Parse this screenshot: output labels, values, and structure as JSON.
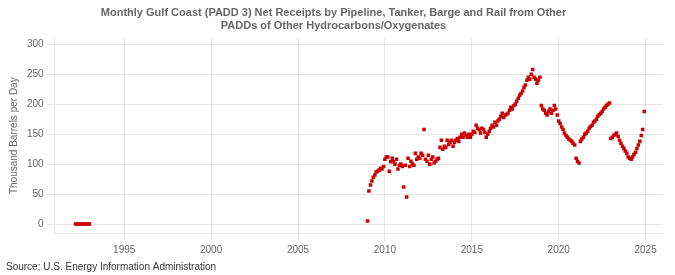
{
  "chart_data": {
    "type": "scatter",
    "title": "Monthly Gulf Coast (PADD 3) Net Receipts by Pipeline, Tanker, Barge and Rail from Other\nPADDs of Other Hydrocarbons/Oxygenates",
    "ylabel": "Thousand Barrels per Day",
    "annotations": [
      "Source: U.S. Energy Information Administration"
    ],
    "color": "#cc0000",
    "marker": "square",
    "grid": true,
    "xlim": [
      1991.0,
      2026.0
    ],
    "ylim": [
      -15,
      310
    ],
    "xticks": [
      1995,
      2000,
      2005,
      2010,
      2015,
      2020,
      2025
    ],
    "yticks": [
      0,
      50,
      100,
      150,
      200,
      250,
      300
    ],
    "x": [
      1992.2,
      1992.3,
      1992.4,
      1992.5,
      1992.6,
      1992.7,
      1992.8,
      1992.9,
      1993.0,
      2009.0,
      2009.08,
      2009.17,
      2009.25,
      2009.33,
      2009.42,
      2009.5,
      2009.58,
      2009.67,
      2009.75,
      2009.83,
      2009.92,
      2010.0,
      2010.08,
      2010.17,
      2010.25,
      2010.33,
      2010.42,
      2010.5,
      2010.58,
      2010.67,
      2010.75,
      2010.83,
      2010.92,
      2011.0,
      2011.08,
      2011.17,
      2011.25,
      2011.33,
      2011.42,
      2011.5,
      2011.58,
      2011.67,
      2011.75,
      2011.83,
      2011.92,
      2012.0,
      2012.08,
      2012.17,
      2012.25,
      2012.33,
      2012.42,
      2012.5,
      2012.58,
      2012.67,
      2012.75,
      2012.83,
      2012.92,
      2013.0,
      2013.08,
      2013.17,
      2013.25,
      2013.33,
      2013.42,
      2013.5,
      2013.58,
      2013.67,
      2013.75,
      2013.83,
      2013.92,
      2014.0,
      2014.08,
      2014.17,
      2014.25,
      2014.33,
      2014.42,
      2014.5,
      2014.58,
      2014.67,
      2014.75,
      2014.83,
      2014.92,
      2015.0,
      2015.08,
      2015.17,
      2015.25,
      2015.33,
      2015.42,
      2015.5,
      2015.58,
      2015.67,
      2015.75,
      2015.83,
      2015.92,
      2016.0,
      2016.08,
      2016.17,
      2016.25,
      2016.33,
      2016.42,
      2016.5,
      2016.58,
      2016.67,
      2016.75,
      2016.83,
      2016.92,
      2017.0,
      2017.08,
      2017.17,
      2017.25,
      2017.33,
      2017.42,
      2017.5,
      2017.58,
      2017.67,
      2017.75,
      2017.83,
      2017.92,
      2018.0,
      2018.08,
      2018.17,
      2018.25,
      2018.33,
      2018.42,
      2018.5,
      2018.58,
      2018.67,
      2018.75,
      2018.83,
      2018.92,
      2019.0,
      2019.08,
      2019.17,
      2019.25,
      2019.33,
      2019.42,
      2019.5,
      2019.58,
      2019.67,
      2019.75,
      2019.83,
      2019.92,
      2020.0,
      2020.08,
      2020.17,
      2020.25,
      2020.33,
      2020.42,
      2020.5,
      2020.58,
      2020.67,
      2020.75,
      2020.83,
      2020.92,
      2021.0,
      2021.08,
      2021.17,
      2021.25,
      2021.33,
      2021.42,
      2021.5,
      2021.58,
      2021.67,
      2021.75,
      2021.83,
      2021.92,
      2022.0,
      2022.08,
      2022.17,
      2022.25,
      2022.33,
      2022.42,
      2022.5,
      2022.58,
      2022.67,
      2022.75,
      2022.83,
      2022.92,
      2023.0,
      2023.08,
      2023.17,
      2023.25,
      2023.33,
      2023.42,
      2023.5,
      2023.58,
      2023.67,
      2023.75,
      2023.83,
      2023.92,
      2024.0,
      2024.08,
      2024.17,
      2024.25,
      2024.33,
      2024.42,
      2024.5,
      2024.58,
      2024.67,
      2024.75,
      2024.83,
      2024.92
    ],
    "values": [
      0,
      0,
      0,
      0,
      0,
      0,
      0,
      0,
      0,
      5,
      55,
      65,
      72,
      78,
      82,
      87,
      88,
      90,
      93,
      92,
      96,
      108,
      112,
      112,
      88,
      104,
      110,
      104,
      100,
      108,
      92,
      98,
      100,
      96,
      62,
      98,
      45,
      110,
      96,
      105,
      100,
      98,
      118,
      108,
      112,
      110,
      118,
      115,
      158,
      108,
      105,
      115,
      100,
      108,
      112,
      102,
      105,
      108,
      110,
      128,
      140,
      125,
      130,
      128,
      140,
      133,
      136,
      140,
      130,
      136,
      140,
      143,
      138,
      145,
      150,
      145,
      152,
      148,
      145,
      150,
      145,
      150,
      155,
      153,
      165,
      160,
      158,
      152,
      160,
      158,
      153,
      145,
      150,
      155,
      160,
      165,
      162,
      170,
      165,
      172,
      175,
      180,
      185,
      178,
      182,
      183,
      185,
      190,
      195,
      192,
      198,
      200,
      205,
      210,
      215,
      218,
      222,
      228,
      232,
      240,
      245,
      242,
      250,
      258,
      245,
      242,
      235,
      240,
      245,
      198,
      192,
      190,
      185,
      182,
      188,
      192,
      185,
      190,
      198,
      192,
      182,
      172,
      168,
      162,
      158,
      152,
      148,
      145,
      142,
      140,
      138,
      135,
      132,
      110,
      105,
      102,
      138,
      142,
      145,
      150,
      152,
      155,
      160,
      163,
      165,
      170,
      172,
      175,
      180,
      183,
      185,
      188,
      192,
      195,
      198,
      200,
      202,
      143,
      145,
      148,
      150,
      152,
      146,
      140,
      135,
      130,
      126,
      122,
      118,
      112,
      110,
      108,
      112,
      116,
      120,
      126,
      132,
      138,
      148,
      158,
      188
    ]
  }
}
